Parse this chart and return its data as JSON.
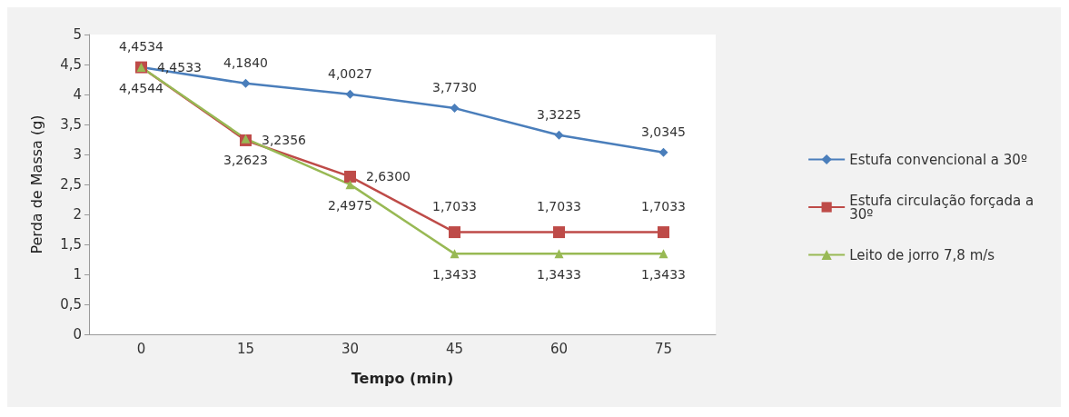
{
  "chart_data": {
    "type": "line",
    "xlabel": "Tempo (min)",
    "ylabel": "Perda de Massa (g)",
    "categories": [
      "0",
      "15",
      "30",
      "45",
      "60",
      "75"
    ],
    "ylim": [
      0,
      5
    ],
    "yticks": [
      0,
      {
        "value": 0.5,
        "label": "0,5"
      },
      1,
      {
        "value": 1.5,
        "label": "1,5"
      },
      2,
      {
        "value": 2.5,
        "label": "2,5"
      },
      3,
      {
        "value": 3.5,
        "label": "3,5"
      },
      4,
      {
        "value": 4.5,
        "label": "4,5"
      },
      5
    ],
    "grid": false,
    "legend": "right",
    "series": [
      {
        "name": "Estufa convencional a 30º",
        "color": "#4a7ebb",
        "marker": "diamond",
        "values": [
          4.4534,
          4.184,
          4.0027,
          3.773,
          3.3225,
          3.0345
        ],
        "value_labels": [
          "4,4534",
          "4,1840",
          "4,0027",
          "3,7730",
          "3,3225",
          "3,0345"
        ]
      },
      {
        "name": "Estufa circulação forçada a 30º",
        "color": "#be4b48",
        "marker": "square",
        "values": [
          4.4533,
          3.2356,
          2.63,
          1.7033,
          1.7033,
          1.7033
        ],
        "value_labels": [
          "4,4533",
          "3,2356",
          "2,6300",
          "1,7033",
          "1,7033",
          "1,7033"
        ]
      },
      {
        "name": "Leito de jorro 7,8 m/s",
        "color": "#98b954",
        "marker": "triangle",
        "values": [
          4.4544,
          3.2623,
          2.4975,
          1.3433,
          1.3433,
          1.3433
        ],
        "value_labels": [
          "4,4544",
          "3,2623",
          "2,4975",
          "1,3433",
          "1,3433",
          "1,3433"
        ]
      }
    ]
  }
}
